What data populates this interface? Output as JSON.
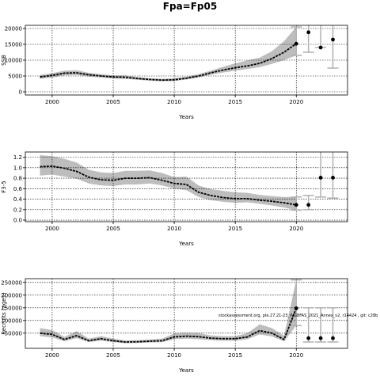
{
  "title": "Fpa=Fp05",
  "annotation": "stockassessment.org, ple.27.21-23_WGBFAS_2021_Annex_v2, r14424 , git: c28b",
  "colors": {
    "band": "#bdbdbd",
    "line": "#000000",
    "whisker": "#b0b0b0",
    "grid": "#000000"
  },
  "chart_data": [
    {
      "type": "line",
      "name": "ssb",
      "ylabel": "SSB",
      "xlabel": "Years",
      "xlim": [
        1997.8,
        2024.2
      ],
      "ylim": [
        -1000,
        21000
      ],
      "xticks": [
        2000,
        2005,
        2010,
        2015,
        2020
      ],
      "yticks": [
        0,
        5000,
        10000,
        15000,
        20000
      ],
      "ytick_labels": [
        "0",
        "5000",
        "10000",
        "15000",
        "20000"
      ],
      "x": [
        1999,
        2000,
        2001,
        2002,
        2003,
        2004,
        2005,
        2006,
        2007,
        2008,
        2009,
        2010,
        2011,
        2012,
        2013,
        2014,
        2015,
        2016,
        2017,
        2018,
        2019,
        2020
      ],
      "y": [
        4700,
        5200,
        5900,
        6000,
        5400,
        5000,
        4700,
        4600,
        4200,
        3900,
        3700,
        3800,
        4300,
        5000,
        6000,
        6900,
        7600,
        8200,
        9000,
        10500,
        12500,
        15200
      ],
      "lower": [
        4100,
        4500,
        5200,
        5300,
        4800,
        4500,
        4200,
        4100,
        3800,
        3500,
        3300,
        3400,
        3900,
        4500,
        5400,
        6100,
        6700,
        7200,
        7800,
        8800,
        10000,
        11500
      ],
      "upper": [
        5300,
        5900,
        6700,
        6800,
        6000,
        5600,
        5200,
        5200,
        4700,
        4300,
        4100,
        4300,
        4800,
        5600,
        6700,
        7900,
        9000,
        9900,
        10800,
        12800,
        16000,
        20500
      ],
      "forecast": [
        {
          "x": 2021,
          "y": 18800,
          "lower": 12500,
          "upper": 27000
        },
        {
          "x": 2022,
          "y": 14000,
          "lower": 14000,
          "upper": 27000
        },
        {
          "x": 2023,
          "y": 16500,
          "lower": 7500,
          "upper": 27000
        }
      ]
    },
    {
      "type": "line",
      "name": "fbar",
      "ylabel": "F3-5",
      "xlabel": "Years",
      "xlim": [
        1997.8,
        2024.2
      ],
      "ylim": [
        -0.03,
        1.3
      ],
      "xticks": [
        2000,
        2005,
        2010,
        2015,
        2020
      ],
      "yticks": [
        0.0,
        0.2,
        0.4,
        0.6,
        0.8,
        1.0,
        1.2
      ],
      "ytick_labels": [
        "0.0",
        "0.2",
        "0.4",
        "0.6",
        "0.8",
        "1.0",
        "1.2"
      ],
      "x": [
        1999,
        2000,
        2001,
        2002,
        2003,
        2004,
        2005,
        2006,
        2007,
        2008,
        2009,
        2010,
        2011,
        2012,
        2013,
        2014,
        2015,
        2016,
        2017,
        2018,
        2019,
        2020
      ],
      "y": [
        1.02,
        1.03,
        0.99,
        0.93,
        0.82,
        0.77,
        0.76,
        0.8,
        0.8,
        0.81,
        0.76,
        0.7,
        0.68,
        0.53,
        0.47,
        0.43,
        0.41,
        0.41,
        0.38,
        0.36,
        0.33,
        0.29
      ],
      "lower": [
        0.85,
        0.87,
        0.83,
        0.79,
        0.7,
        0.66,
        0.65,
        0.68,
        0.68,
        0.7,
        0.66,
        0.6,
        0.57,
        0.44,
        0.38,
        0.35,
        0.33,
        0.34,
        0.31,
        0.28,
        0.24,
        0.19
      ],
      "upper": [
        1.24,
        1.22,
        1.17,
        1.1,
        0.96,
        0.91,
        0.9,
        0.94,
        0.94,
        0.95,
        0.9,
        0.82,
        0.83,
        0.66,
        0.59,
        0.56,
        0.53,
        0.52,
        0.48,
        0.46,
        0.44,
        0.44
      ],
      "forecast": [
        {
          "x": 2021,
          "y": 0.29,
          "lower": 0.2,
          "upper": 0.47
        },
        {
          "x": 2022,
          "y": 0.81,
          "lower": 0.44,
          "upper": 1.35
        },
        {
          "x": 2023,
          "y": 0.81,
          "lower": 0.42,
          "upper": 1.35
        }
      ]
    },
    {
      "type": "line",
      "name": "recruits",
      "ylabel": "Recruits (age1)",
      "xlabel": "Years",
      "xlim": [
        1997.8,
        2024.2
      ],
      "ylim": [
        -10000,
        265000
      ],
      "xticks": [
        2000,
        2005,
        2010,
        2015,
        2020
      ],
      "yticks": [
        50000,
        100000,
        150000,
        200000,
        250000
      ],
      "ytick_labels": [
        "50000",
        "100000",
        "150000",
        "200000",
        "250000"
      ],
      "x": [
        1999,
        2000,
        2001,
        2002,
        2003,
        2004,
        2005,
        2006,
        2007,
        2008,
        2009,
        2010,
        2011,
        2012,
        2013,
        2014,
        2015,
        2016,
        2017,
        2018,
        2019,
        2020
      ],
      "y": [
        50000,
        45000,
        25000,
        40000,
        20000,
        28000,
        20000,
        15000,
        16000,
        18000,
        20000,
        35000,
        38000,
        36000,
        30000,
        28000,
        28000,
        35000,
        60000,
        50000,
        25000,
        148000
      ],
      "lower": [
        38000,
        33000,
        18000,
        30000,
        15000,
        20000,
        14000,
        10000,
        11000,
        13000,
        14000,
        26000,
        28000,
        26000,
        22000,
        20000,
        20000,
        26000,
        45000,
        37000,
        18000,
        80000
      ],
      "upper": [
        70000,
        62000,
        35000,
        58000,
        28000,
        38000,
        28000,
        21000,
        22000,
        25000,
        28000,
        48000,
        52000,
        50000,
        41000,
        38000,
        38000,
        50000,
        85000,
        70000,
        40000,
        260000
      ],
      "forecast": [
        {
          "x": 2021,
          "y": 30000,
          "lower": 15000,
          "upper": 150000
        },
        {
          "x": 2022,
          "y": 30000,
          "lower": 15000,
          "upper": 150000
        },
        {
          "x": 2023,
          "y": 30000,
          "lower": 15000,
          "upper": 150000
        }
      ]
    }
  ]
}
